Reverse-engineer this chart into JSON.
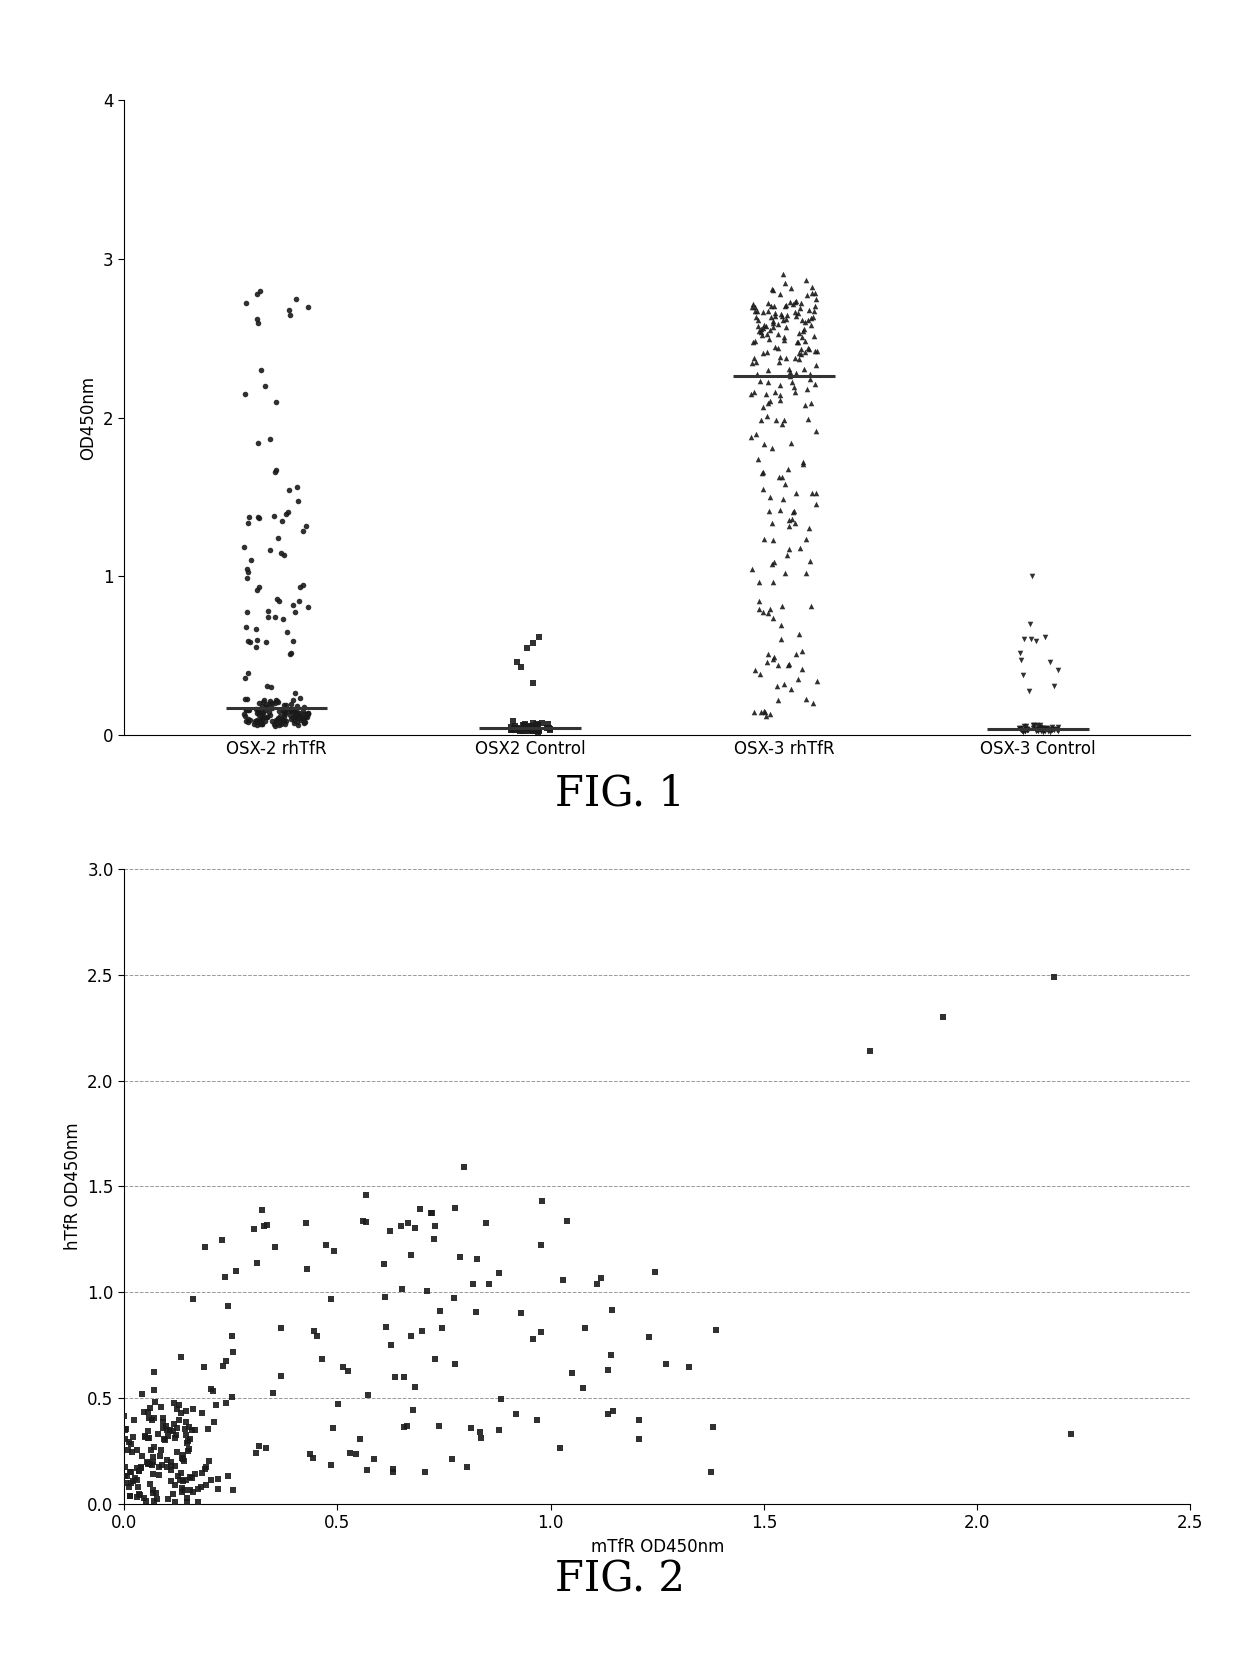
{
  "fig1": {
    "title": "FIG. 1",
    "ylabel": "OD450nm",
    "ylim": [
      0,
      4
    ],
    "yticks": [
      0,
      1,
      2,
      3,
      4
    ],
    "groups": [
      "OSX-2 rhTfR",
      "OSX2 Control",
      "OSX-3 rhTfR",
      "OSX-3 Control"
    ],
    "group_markers": [
      "o",
      "s",
      "^",
      "v"
    ],
    "background_color": "#ffffff",
    "dot_color": "#1a1a1a",
    "dot_size": 16,
    "median_color": "#444444"
  },
  "fig2": {
    "title": "FIG. 2",
    "xlabel": "mTfR OD450nm",
    "ylabel": "hTfR OD450nm",
    "xlim": [
      0.0,
      2.5
    ],
    "ylim": [
      0.0,
      3.0
    ],
    "xticks": [
      0.0,
      0.5,
      1.0,
      1.5,
      2.0,
      2.5
    ],
    "yticks": [
      0.0,
      0.5,
      1.0,
      1.5,
      2.0,
      2.5,
      3.0
    ],
    "grid_lines": [
      0.0,
      0.5,
      1.0,
      1.5,
      2.0,
      2.5,
      3.0
    ],
    "background_color": "#ffffff",
    "dot_color": "#1a1a1a",
    "dot_size": 22
  }
}
